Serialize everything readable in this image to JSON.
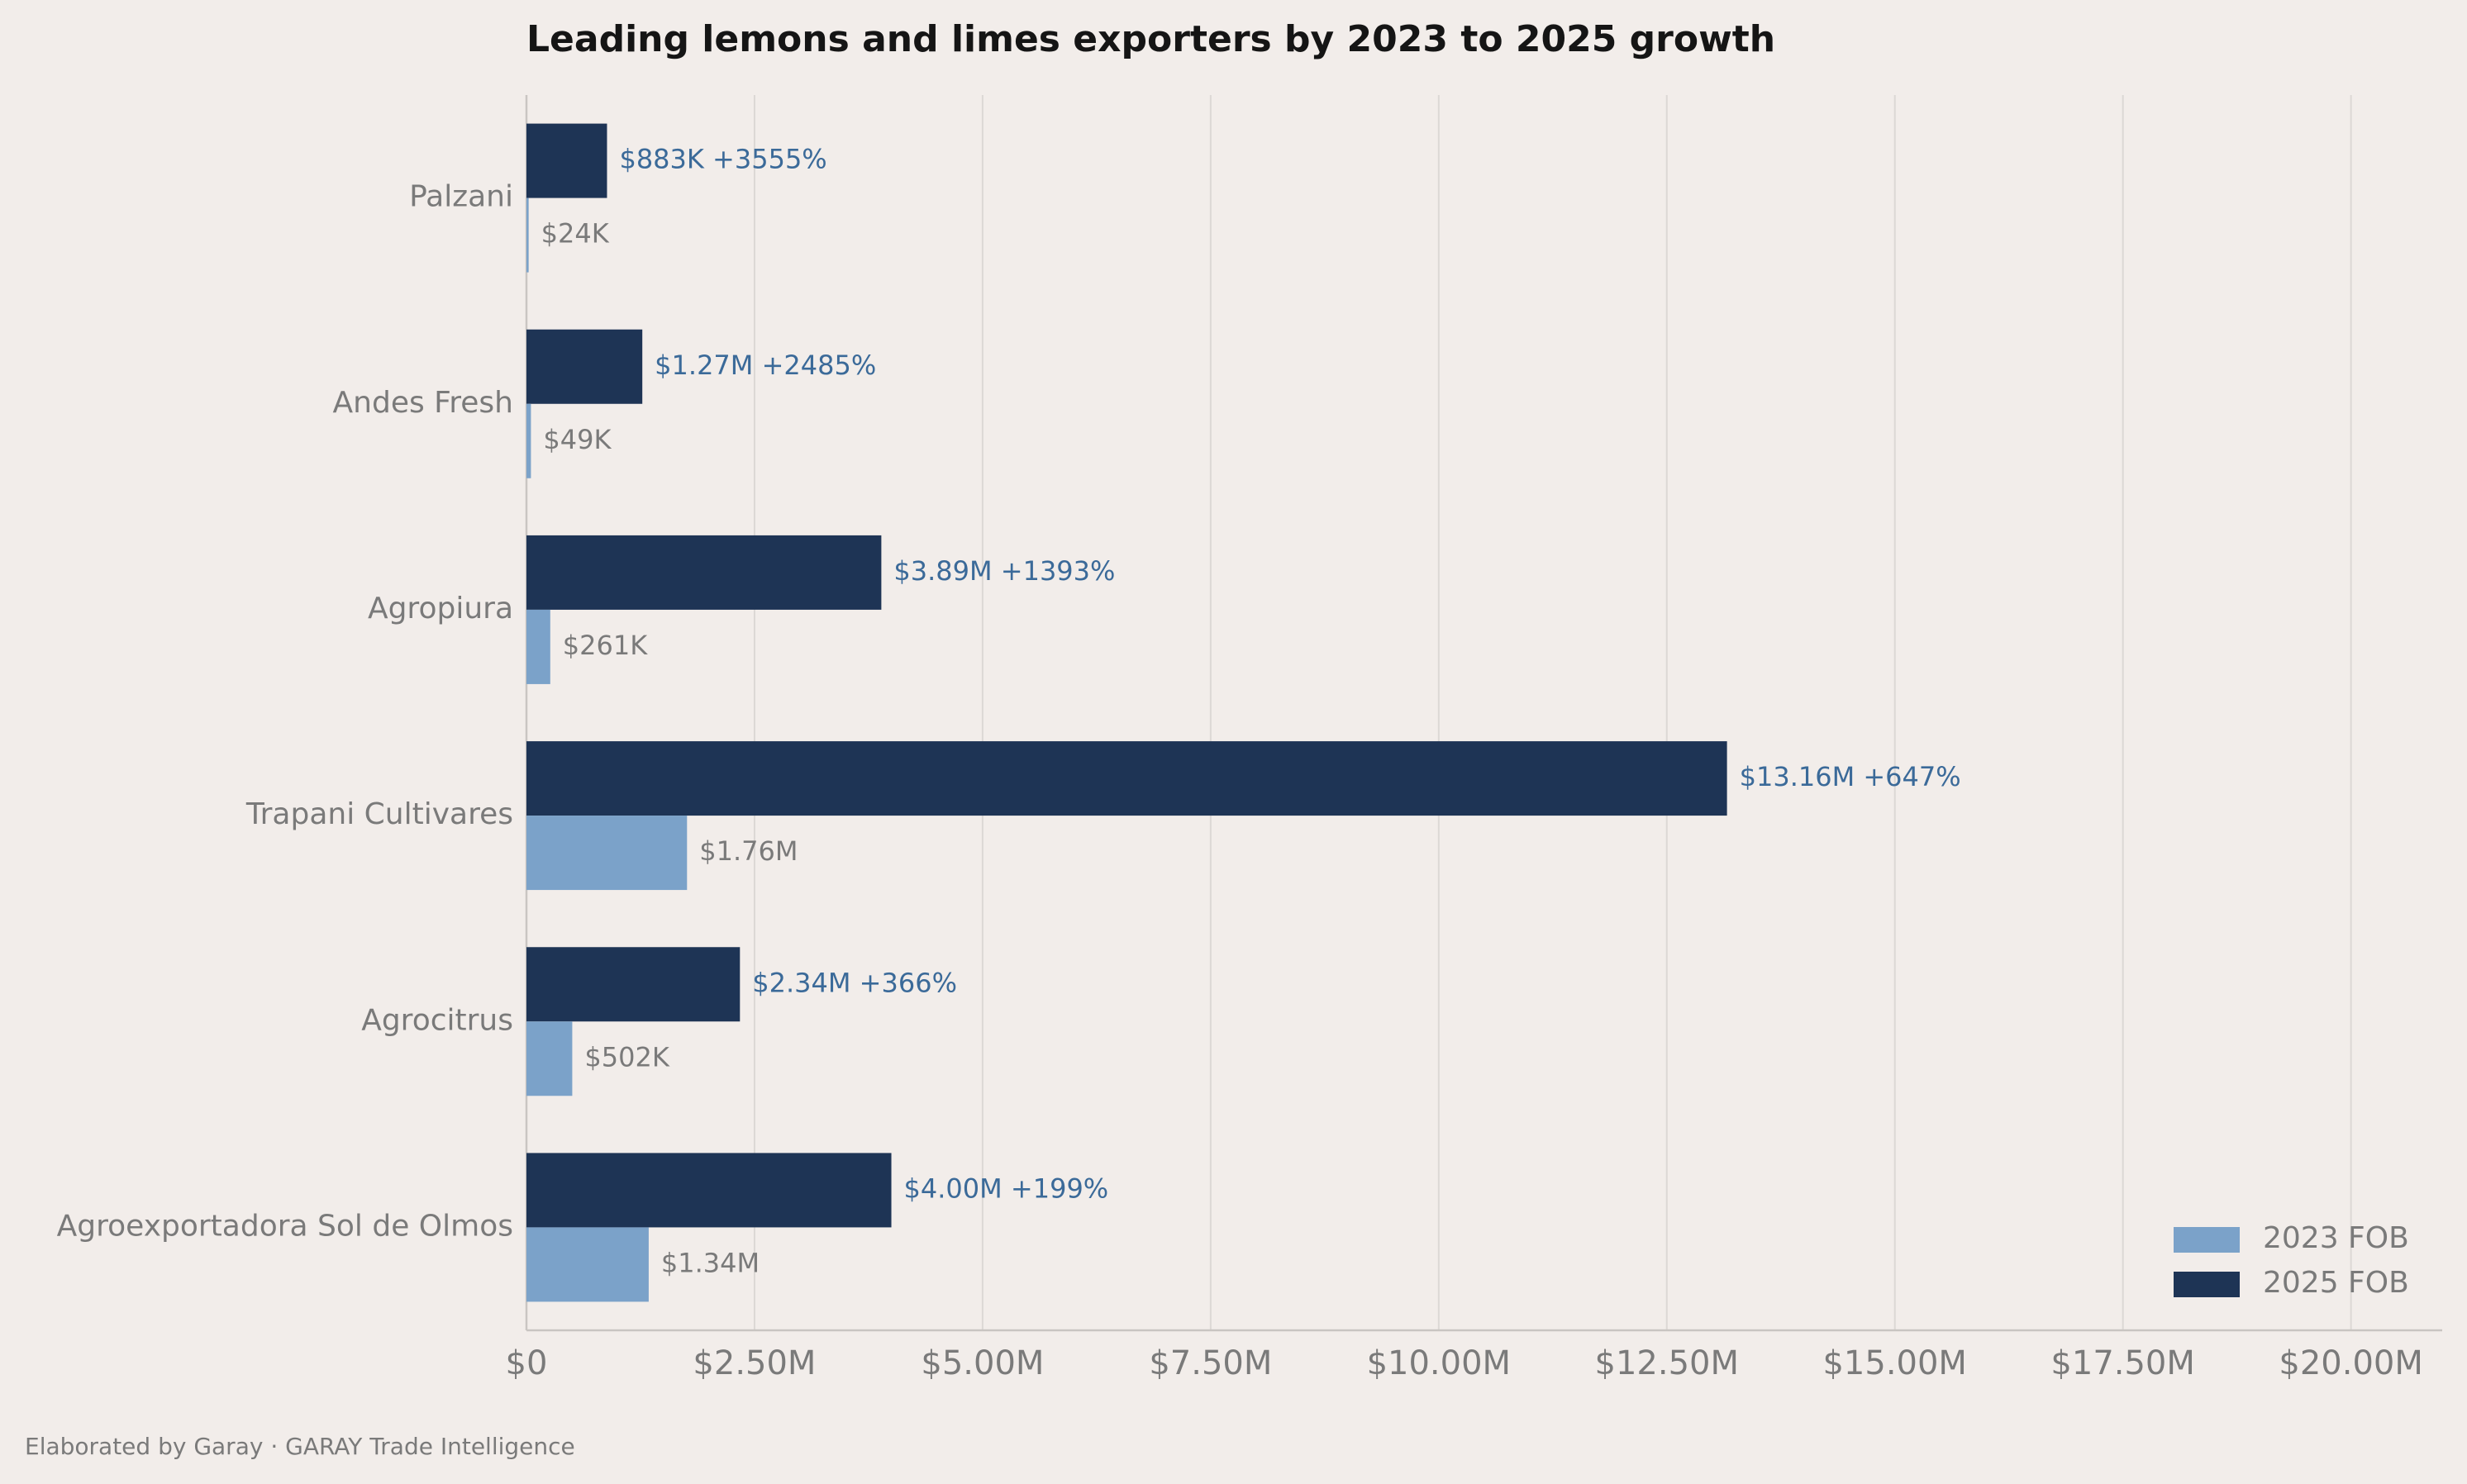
{
  "chart_data": {
    "type": "bar",
    "orientation": "horizontal",
    "title": "Leading lemons and limes exporters by 2023 to 2025 growth",
    "categories": [
      "Palzani",
      "Andes Fresh",
      "Agropiura",
      "Trapani Cultivares",
      "Agrocitrus",
      "Agroexportadora Sol de Olmos"
    ],
    "series": [
      {
        "name": "2023 FOB",
        "color": "#7ba2c9",
        "values": [
          24000,
          49000,
          261000,
          1760000,
          502000,
          1340000
        ],
        "labels": [
          "$24K",
          "$49K",
          "$261K",
          "$1.76M",
          "$502K",
          "$1.34M"
        ]
      },
      {
        "name": "2025 FOB",
        "color": "#1e3455",
        "values": [
          883000,
          1270000,
          3890000,
          13160000,
          2340000,
          4000000
        ],
        "labels": [
          "$883K  +3555%",
          "$1.27M  +2485%",
          "$3.89M  +1393%",
          "$13.16M  +647%",
          "$2.34M  +366%",
          "$4.00M  +199%"
        ]
      }
    ],
    "xlim": [
      0,
      21000000
    ],
    "xticks": [
      0,
      2500000,
      5000000,
      7500000,
      10000000,
      12500000,
      15000000,
      17500000,
      20000000
    ],
    "xtick_labels": [
      "$0",
      "$2.50M",
      "$5.00M",
      "$7.50M",
      "$10.00M",
      "$12.50M",
      "$15.00M",
      "$17.50M",
      "$20.00M"
    ],
    "grid": "vertical",
    "legend_position": "bottom-right"
  },
  "footer": {
    "credit": "Elaborated by Garay  ·  GARAY Trade Intelligence"
  }
}
